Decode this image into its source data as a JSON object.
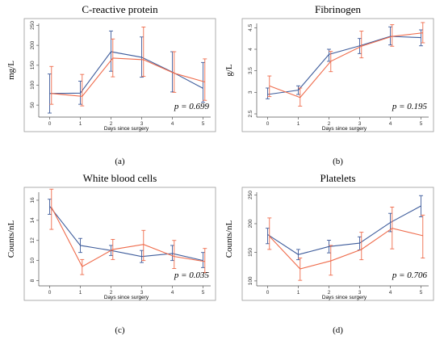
{
  "colors": {
    "series_a": "#3f5d9c",
    "series_b": "#ef6b4b"
  },
  "chart_data": [
    {
      "type": "line",
      "panel": "(a)",
      "title": "C-reactive protein",
      "ylabel": "mg/L",
      "xlabel": "Days since surgery",
      "annotation": "p = 0.699",
      "x": [
        0,
        1,
        2,
        3,
        4,
        5
      ],
      "xlim": [
        -0.25,
        5.25
      ],
      "ylim": [
        28,
        255
      ],
      "yticks": [
        50,
        100,
        150,
        200,
        250
      ],
      "grid": false,
      "series": [
        {
          "color": "#3f5d9c",
          "x": [
            0,
            1,
            2,
            3,
            4,
            5
          ],
          "values": [
            79,
            80,
            184,
            170,
            133,
            92
          ],
          "lower": [
            30,
            52,
            135,
            120,
            83,
            57
          ],
          "upper": [
            128,
            110,
            236,
            221,
            184,
            157
          ]
        },
        {
          "color": "#ef6b4b",
          "x": [
            0.06,
            1.06,
            2.06,
            3.06,
            4.06,
            5.06
          ],
          "values": [
            79,
            72,
            168,
            164,
            130,
            108
          ],
          "lower": [
            52,
            48,
            121,
            122,
            82,
            62
          ],
          "upper": [
            147,
            127,
            216,
            246,
            184,
            166
          ]
        }
      ]
    },
    {
      "type": "line",
      "panel": "(b)",
      "title": "Fibrinogen",
      "ylabel": "g/L",
      "xlabel": "Days since surgery",
      "annotation": "p = 0.195",
      "x": [
        0,
        1,
        2,
        3,
        4,
        5
      ],
      "xlim": [
        -0.25,
        5.25
      ],
      "ylim": [
        2.5,
        4.6
      ],
      "yticks": [
        2.5,
        3,
        3.5,
        4,
        4.5
      ],
      "grid": false,
      "series": [
        {
          "color": "#3f5d9c",
          "x": [
            0,
            1,
            2,
            3,
            4,
            5
          ],
          "values": [
            2.95,
            3.05,
            3.88,
            4.08,
            4.3,
            4.27
          ],
          "lower": [
            2.85,
            2.95,
            3.72,
            3.9,
            4.1,
            4.08
          ],
          "upper": [
            3.1,
            3.15,
            4.0,
            4.25,
            4.52,
            4.45
          ]
        },
        {
          "color": "#ef6b4b",
          "x": [
            0.06,
            1.06,
            2.06,
            3.06,
            4.06,
            5.06
          ],
          "values": [
            3.15,
            2.88,
            3.72,
            4.07,
            4.3,
            4.38
          ],
          "lower": [
            2.9,
            2.68,
            3.48,
            3.8,
            4.07,
            4.15
          ],
          "upper": [
            3.38,
            3.1,
            3.95,
            4.42,
            4.57,
            4.62
          ]
        }
      ]
    },
    {
      "type": "line",
      "panel": "(c)",
      "title": "White blood cells",
      "ylabel": "Counts/nL",
      "xlabel": "Days since surgery",
      "annotation": "p = 0.035",
      "x": [
        0,
        1,
        2,
        3,
        4,
        5
      ],
      "xlim": [
        -0.25,
        5.25
      ],
      "ylim": [
        7.8,
        16.8
      ],
      "yticks": [
        8,
        10,
        12,
        14,
        16
      ],
      "grid": false,
      "series": [
        {
          "color": "#3f5d9c",
          "x": [
            0,
            1,
            2,
            3,
            4,
            5
          ],
          "values": [
            15.4,
            11.5,
            11.0,
            10.4,
            10.7,
            10.0
          ],
          "lower": [
            14.6,
            10.8,
            10.5,
            9.8,
            10.0,
            9.3
          ],
          "upper": [
            16.1,
            12.2,
            11.5,
            11.0,
            11.5,
            10.8
          ]
        },
        {
          "color": "#ef6b4b",
          "x": [
            0.06,
            1.06,
            2.06,
            3.06,
            4.06,
            5.06
          ],
          "values": [
            15.3,
            9.4,
            11.1,
            11.6,
            10.4,
            9.9
          ],
          "lower": [
            13.1,
            8.6,
            10.1,
            10.0,
            9.2,
            8.8
          ],
          "upper": [
            17.1,
            10.1,
            12.1,
            13.0,
            12.0,
            11.2
          ]
        }
      ]
    },
    {
      "type": "line",
      "panel": "(d)",
      "title": "Platelets",
      "ylabel": "Counts/nL",
      "xlabel": "Days since surgery",
      "annotation": "p = 0.706",
      "x": [
        0,
        1,
        2,
        3,
        4,
        5
      ],
      "xlim": [
        -0.25,
        5.25
      ],
      "ylim": [
        97,
        255
      ],
      "yticks": [
        100,
        150,
        200,
        250
      ],
      "grid": false,
      "series": [
        {
          "color": "#3f5d9c",
          "x": [
            0,
            1,
            2,
            3,
            4,
            5
          ],
          "values": [
            181,
            146,
            160,
            166,
            202,
            231
          ],
          "lower": [
            165,
            137,
            149,
            154,
            186,
            212
          ],
          "upper": [
            192,
            155,
            171,
            177,
            218,
            249
          ]
        },
        {
          "color": "#ef6b4b",
          "x": [
            0.06,
            1.06,
            2.06,
            3.06,
            4.06,
            5.06
          ],
          "values": [
            178,
            121,
            135,
            155,
            192,
            179
          ],
          "lower": [
            155,
            101,
            110,
            137,
            156,
            140
          ],
          "upper": [
            210,
            140,
            162,
            185,
            229,
            215
          ]
        }
      ]
    }
  ]
}
